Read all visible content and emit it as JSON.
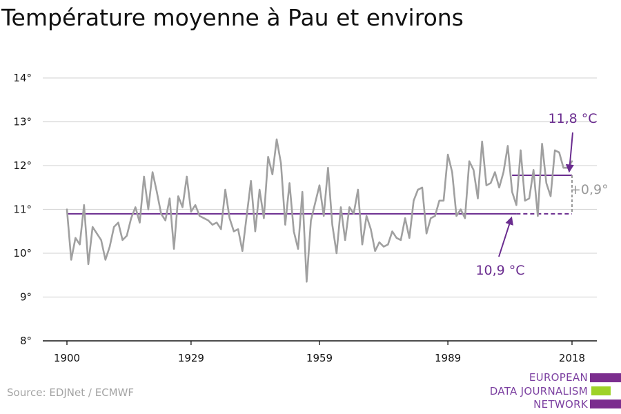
{
  "title": "Température moyenne à Pau et environs",
  "source": "Source: EDJNet / ECMWF",
  "logo": {
    "lines": [
      "EUROPEAN",
      "DATA JOURNALISM",
      "NETWORK"
    ],
    "colors": [
      "#7b2d8e",
      "#9ed228",
      "#7b2d8e"
    ]
  },
  "colors": {
    "series": "#a0a0a0",
    "reference": "#6a2c8f",
    "grid": "#d9d9d9",
    "axis": "#111111"
  },
  "chart_data": {
    "type": "line",
    "title": "Température moyenne à Pau et environs",
    "xlabel": "",
    "ylabel": "",
    "xlim": [
      1900,
      2018
    ],
    "ylim": [
      8,
      14
    ],
    "yticks": [
      {
        "value": 8,
        "label": "8°"
      },
      {
        "value": 9,
        "label": "9°"
      },
      {
        "value": 10,
        "label": "10°"
      },
      {
        "value": 11,
        "label": "11°"
      },
      {
        "value": 12,
        "label": "12°"
      },
      {
        "value": 13,
        "label": "13°"
      },
      {
        "value": 14,
        "label": "14°"
      }
    ],
    "xticks": [
      {
        "value": 1900,
        "label": "1900"
      },
      {
        "value": 1929,
        "label": "1929"
      },
      {
        "value": 1959,
        "label": "1959"
      },
      {
        "value": 1989,
        "label": "1989"
      },
      {
        "value": 2018,
        "label": "2018"
      }
    ],
    "grid": true,
    "series": [
      {
        "name": "",
        "x": [
          1900,
          1901,
          1902,
          1903,
          1904,
          1905,
          1906,
          1907,
          1908,
          1909,
          1910,
          1911,
          1912,
          1913,
          1914,
          1915,
          1916,
          1917,
          1918,
          1919,
          1920,
          1921,
          1922,
          1923,
          1924,
          1925,
          1926,
          1927,
          1928,
          1929,
          1930,
          1931,
          1932,
          1933,
          1934,
          1935,
          1936,
          1937,
          1938,
          1939,
          1940,
          1941,
          1942,
          1943,
          1944,
          1945,
          1946,
          1947,
          1948,
          1949,
          1950,
          1951,
          1952,
          1953,
          1954,
          1955,
          1956,
          1957,
          1958,
          1959,
          1960,
          1961,
          1962,
          1963,
          1964,
          1965,
          1966,
          1967,
          1968,
          1969,
          1970,
          1971,
          1972,
          1973,
          1974,
          1975,
          1976,
          1977,
          1978,
          1979,
          1980,
          1981,
          1982,
          1983,
          1984,
          1985,
          1986,
          1987,
          1988,
          1989,
          1990,
          1991,
          1992,
          1993,
          1994,
          1995,
          1996,
          1997,
          1998,
          1999,
          2000,
          2001,
          2002,
          2003,
          2004,
          2005,
          2006,
          2007,
          2008,
          2009,
          2010,
          2011,
          2012,
          2013,
          2014,
          2015,
          2016,
          2017,
          2018
        ],
        "values": [
          11.0,
          9.85,
          10.35,
          10.2,
          11.1,
          9.75,
          10.6,
          10.45,
          10.3,
          9.85,
          10.15,
          10.6,
          10.7,
          10.3,
          10.4,
          10.8,
          11.05,
          10.7,
          11.75,
          11.0,
          11.85,
          11.4,
          10.9,
          10.75,
          11.25,
          10.1,
          11.3,
          11.05,
          11.75,
          10.95,
          11.1,
          10.85,
          10.8,
          10.75,
          10.65,
          10.7,
          10.55,
          11.45,
          10.8,
          10.5,
          10.55,
          10.05,
          10.85,
          11.65,
          10.5,
          11.45,
          10.8,
          12.2,
          11.8,
          12.6,
          12.05,
          10.65,
          11.6,
          10.5,
          10.1,
          11.4,
          9.35,
          10.75,
          11.15,
          11.55,
          10.85,
          11.95,
          10.65,
          10.0,
          11.05,
          10.3,
          11.05,
          10.9,
          11.45,
          10.2,
          10.85,
          10.55,
          10.05,
          10.25,
          10.15,
          10.2,
          10.5,
          10.35,
          10.3,
          10.8,
          10.35,
          11.2,
          11.45,
          11.5,
          10.45,
          10.8,
          10.85,
          11.2,
          11.2,
          12.25,
          11.85,
          10.85,
          11.0,
          10.8,
          12.1,
          11.9,
          11.25,
          12.55,
          11.55,
          11.6,
          11.85,
          11.5,
          11.85,
          12.45,
          11.4,
          11.1,
          12.35,
          11.2,
          11.25,
          11.9,
          10.85,
          12.5,
          11.6,
          11.3,
          12.35,
          12.3,
          11.95,
          11.95,
          12.1
        ]
      }
    ],
    "reference_lines": [
      {
        "label": "10,9 °C",
        "value": 10.9,
        "from": 1900,
        "to": 2018,
        "dashed_from": 2005
      },
      {
        "label": "11,8 °C",
        "value": 11.78,
        "from": 2004,
        "to": 2018
      }
    ],
    "annotations": [
      {
        "text": "11,8 °C",
        "arrow_to": [
          2018,
          11.78
        ]
      },
      {
        "text": "10,9 °C",
        "arrow_to": [
          2004,
          10.9
        ]
      },
      {
        "text": "+0,9°"
      }
    ]
  }
}
